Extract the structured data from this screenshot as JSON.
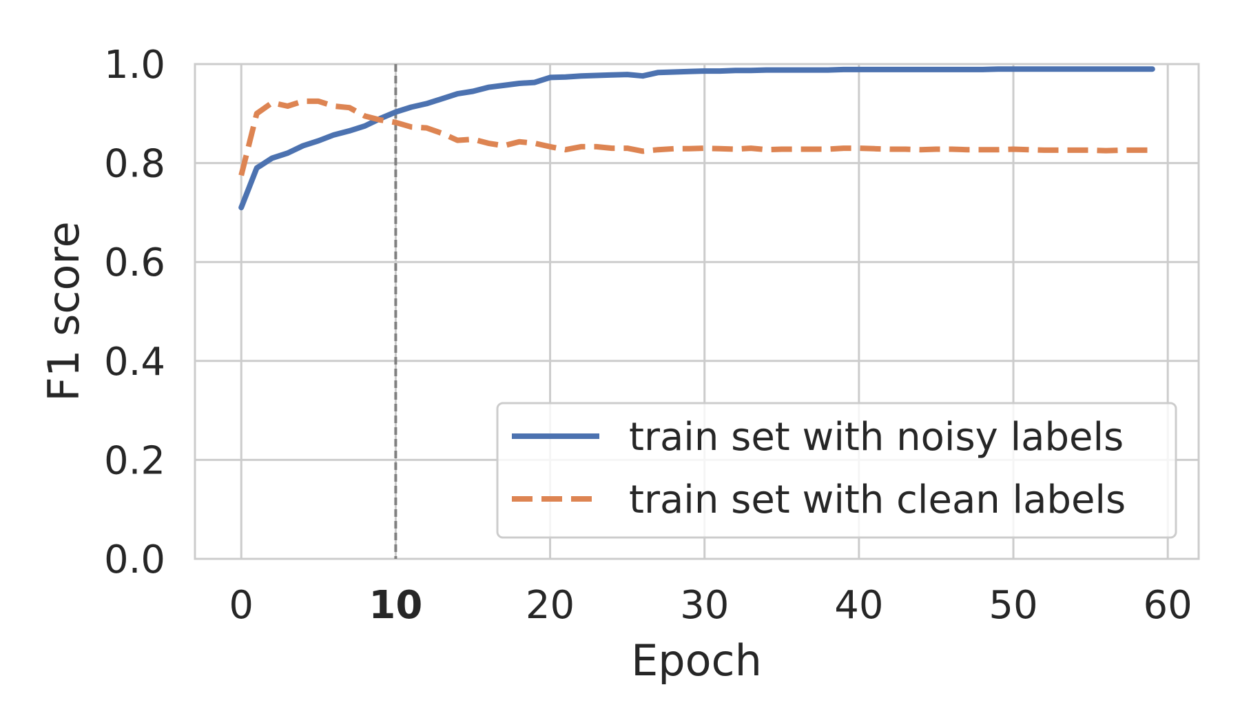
{
  "chart_data": {
    "type": "line",
    "title": "",
    "xlabel": "Epoch",
    "ylabel": "F1 score",
    "xlim": [
      -3,
      62
    ],
    "ylim": [
      0.0,
      1.0
    ],
    "xticks": [
      0,
      10,
      20,
      30,
      40,
      50,
      60
    ],
    "xtick_labels": [
      "0",
      "10",
      "20",
      "30",
      "40",
      "50",
      "60"
    ],
    "xtick_bold": [
      10
    ],
    "yticks": [
      0.0,
      0.2,
      0.4,
      0.6,
      0.8,
      1.0
    ],
    "ytick_labels": [
      "0.0",
      "0.2",
      "0.4",
      "0.6",
      "0.8",
      "1.0"
    ],
    "grid": true,
    "legend_position": "lower-right",
    "vline": {
      "x": 10,
      "color": "#808080",
      "style": "dashed"
    },
    "x": [
      0,
      1,
      2,
      3,
      4,
      5,
      6,
      7,
      8,
      9,
      10,
      11,
      12,
      13,
      14,
      15,
      16,
      17,
      18,
      19,
      20,
      21,
      22,
      23,
      24,
      25,
      26,
      27,
      28,
      29,
      30,
      31,
      32,
      33,
      34,
      35,
      36,
      37,
      38,
      39,
      40,
      41,
      42,
      43,
      44,
      45,
      46,
      47,
      48,
      49,
      50,
      51,
      52,
      53,
      54,
      55,
      56,
      57,
      58,
      59
    ],
    "series": [
      {
        "name": "train set with noisy labels",
        "color": "#4c72b0",
        "style": "solid",
        "values": [
          0.71,
          0.79,
          0.81,
          0.82,
          0.835,
          0.845,
          0.857,
          0.865,
          0.875,
          0.89,
          0.903,
          0.913,
          0.92,
          0.93,
          0.94,
          0.945,
          0.953,
          0.957,
          0.961,
          0.963,
          0.973,
          0.974,
          0.976,
          0.977,
          0.978,
          0.979,
          0.976,
          0.983,
          0.984,
          0.985,
          0.986,
          0.986,
          0.987,
          0.987,
          0.988,
          0.988,
          0.988,
          0.988,
          0.988,
          0.989,
          0.989,
          0.989,
          0.989,
          0.989,
          0.989,
          0.989,
          0.989,
          0.989,
          0.989,
          0.99,
          0.99,
          0.99,
          0.99,
          0.99,
          0.99,
          0.99,
          0.99,
          0.99,
          0.99,
          0.99
        ]
      },
      {
        "name": "train set with clean labels",
        "color": "#dd8452",
        "style": "dashed",
        "values": [
          0.775,
          0.9,
          0.922,
          0.915,
          0.925,
          0.925,
          0.915,
          0.912,
          0.895,
          0.887,
          0.882,
          0.873,
          0.871,
          0.86,
          0.846,
          0.848,
          0.84,
          0.835,
          0.843,
          0.84,
          0.833,
          0.827,
          0.833,
          0.833,
          0.83,
          0.83,
          0.824,
          0.827,
          0.829,
          0.829,
          0.83,
          0.829,
          0.828,
          0.83,
          0.827,
          0.828,
          0.828,
          0.828,
          0.828,
          0.83,
          0.83,
          0.829,
          0.828,
          0.828,
          0.827,
          0.828,
          0.828,
          0.827,
          0.827,
          0.827,
          0.828,
          0.827,
          0.826,
          0.826,
          0.826,
          0.826,
          0.825,
          0.826,
          0.826,
          0.826
        ]
      }
    ]
  }
}
